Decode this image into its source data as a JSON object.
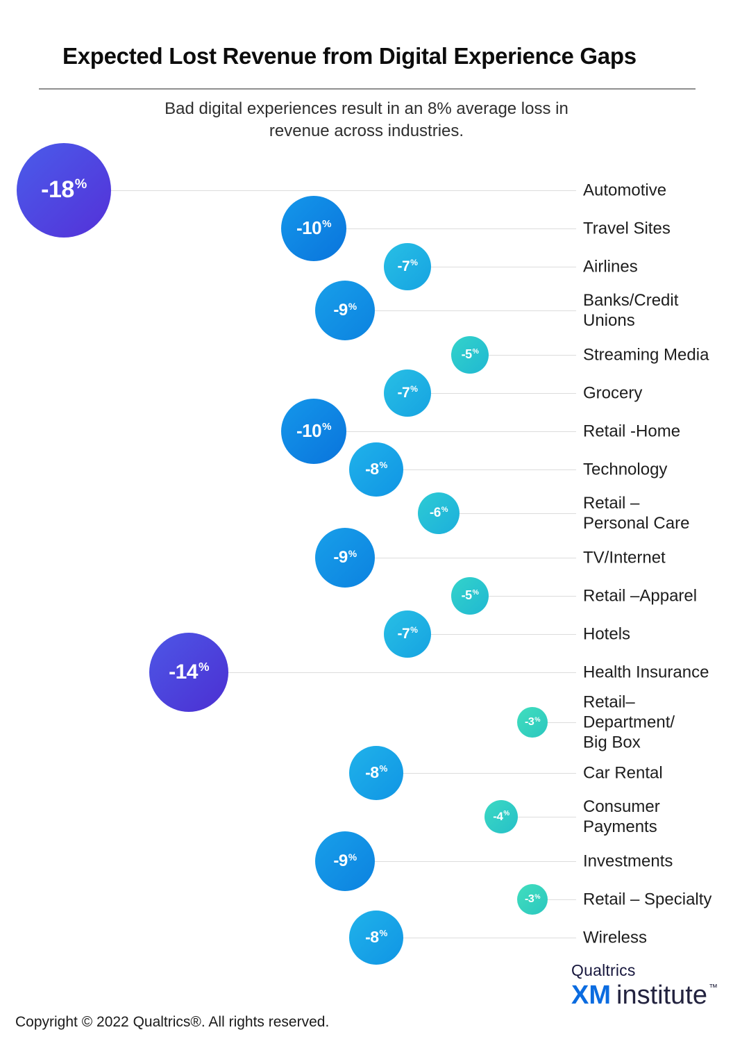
{
  "header": {
    "title": "Expected Lost Revenue from Digital Experience Gaps",
    "subtitle": "Bad digital experiences result in an 8% average loss in\nrevenue across industries."
  },
  "chart_data": {
    "type": "bubble",
    "unit": "percent",
    "value_prefix": "-",
    "xlim": [
      -18,
      0
    ],
    "legend": "none",
    "grid": false,
    "leader_line_color": "#dcdcdc",
    "items": [
      {
        "label": "Automotive",
        "value": -18
      },
      {
        "label": "Travel Sites",
        "value": -10
      },
      {
        "label": "Airlines",
        "value": -7
      },
      {
        "label": "Banks/Credit\nUnions",
        "value": -9
      },
      {
        "label": "Streaming Media",
        "value": -5
      },
      {
        "label": "Grocery",
        "value": -7
      },
      {
        "label": "Retail -Home",
        "value": -10
      },
      {
        "label": "Technology",
        "value": -8
      },
      {
        "label": "Retail –\nPersonal Care",
        "value": -6
      },
      {
        "label": "TV/Internet",
        "value": -9
      },
      {
        "label": "Retail –Apparel",
        "value": -5
      },
      {
        "label": "Hotels",
        "value": -7
      },
      {
        "label": "Health Insurance",
        "value": -14
      },
      {
        "label": "Retail–\nDepartment/\nBig Box",
        "value": -3
      },
      {
        "label": "Car Rental",
        "value": -8
      },
      {
        "label": "Consumer\nPayments",
        "value": -4
      },
      {
        "label": "Investments",
        "value": -9
      },
      {
        "label": "Retail – Specialty",
        "value": -3
      },
      {
        "label": "Wireless",
        "value": -8
      }
    ],
    "bubble_colors": {
      "3": [
        "#41debe",
        "#2bc7bf"
      ],
      "4": [
        "#3bd9c3",
        "#26c0c8"
      ],
      "5": [
        "#33d3ca",
        "#20b8d2"
      ],
      "6": [
        "#2dcbd4",
        "#1cafdc"
      ],
      "7": [
        "#28bfe4",
        "#16a3e2"
      ],
      "8": [
        "#20b2ea",
        "#1095e4"
      ],
      "9": [
        "#189fe9",
        "#0c82e0"
      ],
      "10": [
        "#1497ea",
        "#0a74dc"
      ],
      "14": [
        "#4d57e6",
        "#4c2fd2"
      ],
      "18": [
        "#4a5cea",
        "#5431d8"
      ]
    }
  },
  "footer": {
    "copyright": "Copyright © 2022 Qualtrics®.  All rights reserved.",
    "brand": {
      "name": "Qualtrics",
      "xm": "XM",
      "institute": "institute",
      "trademark": "™",
      "xm_color": "#0b6ce0"
    }
  }
}
